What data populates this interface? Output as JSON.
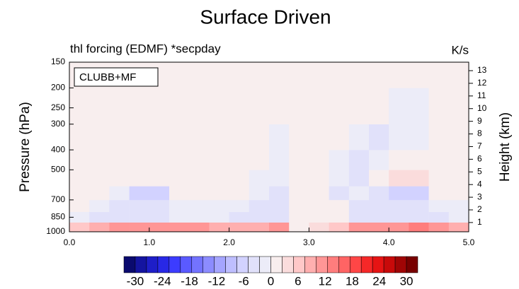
{
  "chart_data": {
    "type": "heatmap",
    "title": "Surface Driven",
    "subtitle": "thl forcing (EDMF) *secpday",
    "units": "K/s",
    "legend_label": "CLUBB+MF",
    "ylabel": "Pressure (hPa)",
    "y2label": "Height (km)",
    "xlim": [
      0,
      5
    ],
    "xticks": [
      {
        "value": 0,
        "label": "0.0"
      },
      {
        "value": 1,
        "label": "1.0"
      },
      {
        "value": 2,
        "label": "2.0"
      },
      {
        "value": 3,
        "label": "3.0"
      },
      {
        "value": 4,
        "label": "4.0"
      },
      {
        "value": 5,
        "label": "5.0"
      }
    ],
    "ylim": [
      1000,
      150
    ],
    "ylog": true,
    "yticks": [
      150,
      200,
      250,
      300,
      400,
      500,
      700,
      850,
      1000
    ],
    "y2lim": [
      0.27,
      13.67
    ],
    "y2ticks": [
      1,
      2,
      3,
      4,
      5,
      6,
      7,
      8,
      9,
      10,
      11,
      12,
      13
    ],
    "x_edges": [
      0,
      0.25,
      0.5,
      0.75,
      1,
      1.25,
      1.5,
      1.75,
      2,
      2.25,
      2.5,
      2.75,
      3,
      3.25,
      3.5,
      3.75,
      4,
      4.25,
      4.5,
      4.75,
      5
    ],
    "y_edges": [
      1000,
      900,
      800,
      700,
      600,
      500,
      400,
      300,
      200,
      150
    ],
    "z": [
      [
        6,
        8,
        10,
        10,
        12,
        12,
        10,
        8,
        8,
        8,
        10,
        2,
        4,
        6,
        10,
        12,
        12,
        14,
        10,
        8
      ],
      [
        -2,
        -4,
        -3,
        -4,
        -3,
        -2,
        -2,
        -2,
        -3,
        -4,
        -4,
        0,
        0,
        0,
        -4,
        -5,
        -5,
        -5,
        -3,
        -2
      ],
      [
        0,
        -1,
        -3,
        -4,
        -4,
        -2,
        -1,
        -1,
        -2,
        -3,
        -3,
        0,
        0,
        0,
        -3,
        -4,
        -4,
        -4,
        -2,
        -1
      ],
      [
        0,
        0,
        -2,
        -6,
        -6,
        0,
        0,
        0,
        0,
        -2,
        -4,
        0,
        0,
        -3,
        -2,
        -3,
        -6,
        -6,
        0,
        0
      ],
      [
        0,
        0,
        0,
        2,
        1,
        0,
        0,
        0,
        0,
        -1,
        -2,
        0,
        0,
        -2,
        -3,
        2,
        3,
        3,
        0,
        0
      ],
      [
        0,
        0,
        0,
        1,
        1,
        0,
        0,
        0,
        0,
        0,
        -1,
        0,
        0,
        -2,
        -3,
        -2,
        2,
        2,
        0,
        0
      ],
      [
        0,
        0,
        0,
        0,
        0,
        0,
        0,
        0,
        0,
        0,
        -1,
        0,
        0,
        0,
        -2,
        -4,
        -2,
        -2,
        0,
        0
      ],
      [
        0,
        0,
        0,
        0,
        0,
        0,
        0,
        0,
        0,
        0,
        0,
        0,
        0,
        0,
        0,
        0,
        -1,
        -1,
        0,
        0
      ],
      [
        0,
        0,
        0,
        0,
        0,
        0,
        0,
        0,
        0,
        0,
        0,
        0,
        0,
        0,
        0,
        0,
        0,
        0,
        0,
        0
      ]
    ],
    "colorbar": {
      "lim": [
        -32.5,
        32.5
      ],
      "ticks": [
        -30,
        -24,
        -18,
        -12,
        -6,
        0,
        6,
        12,
        18,
        24,
        30
      ],
      "colors": [
        "#0a0a6e",
        "#1414a0",
        "#1e1ec8",
        "#2828e6",
        "#3c3cff",
        "#5a5aff",
        "#7373ff",
        "#8c8cff",
        "#a5a5ff",
        "#bebeff",
        "#d2d2ff",
        "#e1e1fa",
        "#ececf8",
        "#f8eeee",
        "#fadcdc",
        "#ffc8c8",
        "#ffafaf",
        "#ff9696",
        "#ff7d7d",
        "#ff6464",
        "#ff4646",
        "#f52828",
        "#e61414",
        "#c80a0a",
        "#a00505",
        "#780000"
      ]
    }
  }
}
